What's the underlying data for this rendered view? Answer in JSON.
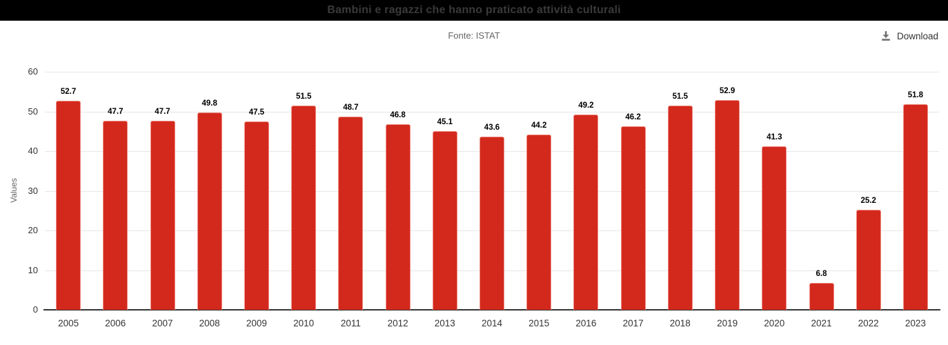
{
  "header": {
    "title": "Bambini e ragazzi che hanno praticato attività culturali"
  },
  "subtitle": "Fonte: ISTAT",
  "toolbar": {
    "download_label": "Download",
    "download_icon": "download-icon"
  },
  "colors": {
    "header_bg": "#000000",
    "header_text": "#3a3a3a",
    "subtitle_text": "#666666",
    "bar_fill": "#d3291d",
    "bar_border": "#ef8d84",
    "gridline": "#e6e6e6",
    "axis_line": "#333333",
    "tick_text": "#333333",
    "axis_title_text": "#666666",
    "value_label": "#000000",
    "download_text": "#333333",
    "download_icon": "#707070"
  },
  "chart_data": {
    "type": "bar",
    "title": "Bambini e ragazzi che hanno praticato attività culturali",
    "subtitle": "Fonte: ISTAT",
    "categories": [
      "2005",
      "2006",
      "2007",
      "2008",
      "2009",
      "2010",
      "2011",
      "2012",
      "2013",
      "2014",
      "2015",
      "2016",
      "2017",
      "2018",
      "2019",
      "2020",
      "2021",
      "2022",
      "2023"
    ],
    "values": [
      52.7,
      47.7,
      47.7,
      49.8,
      47.5,
      51.5,
      48.7,
      46.8,
      45.1,
      43.6,
      44.2,
      49.2,
      46.2,
      51.5,
      52.9,
      41.3,
      6.8,
      25.2,
      51.8
    ],
    "xlabel": "",
    "ylabel": "Values",
    "ylim": [
      0,
      60
    ],
    "yticks": [
      0,
      10,
      20,
      30,
      40,
      50,
      60
    ],
    "grid": true,
    "legend": false,
    "value_labels_shown": true
  }
}
